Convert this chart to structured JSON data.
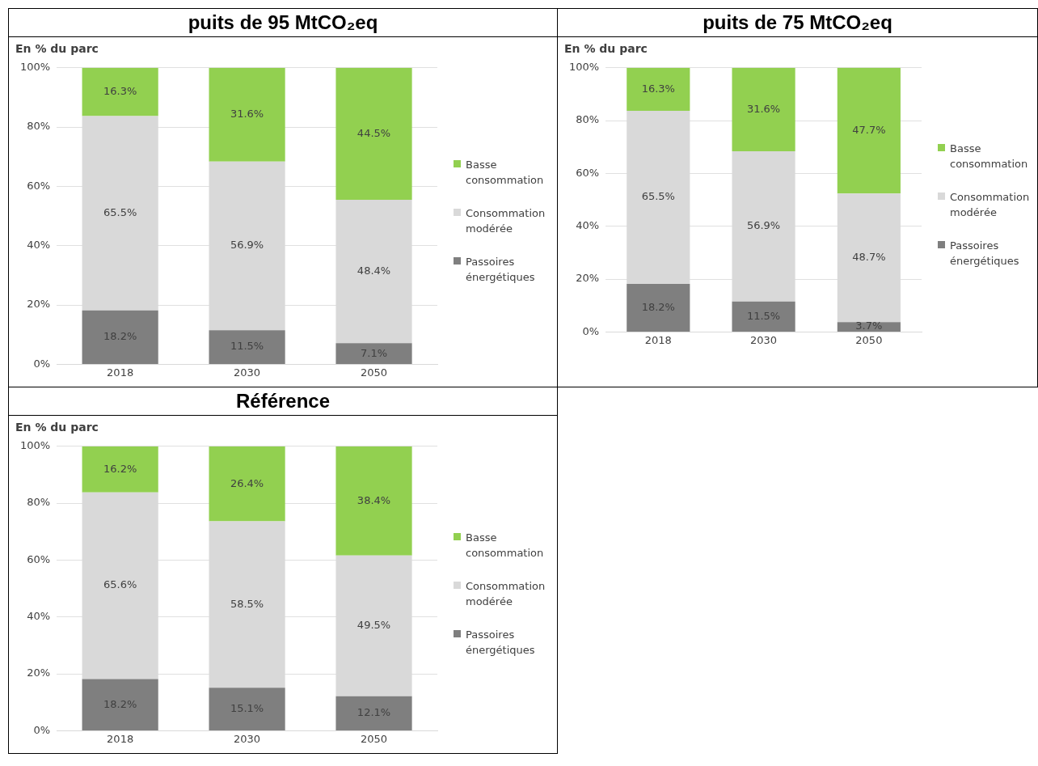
{
  "chart_data": [
    {
      "type": "bar",
      "title": "puits de 95 MtCO₂eq",
      "ylabel": "En % du parc",
      "categories": [
        "2018",
        "2030",
        "2050"
      ],
      "stacked": true,
      "ylim": [
        0,
        100
      ],
      "yticks": [
        {
          "value": 0,
          "label": "0%"
        },
        {
          "value": 20,
          "label": "20%"
        },
        {
          "value": 40,
          "label": "40%"
        },
        {
          "value": 60,
          "label": "60%"
        },
        {
          "value": 80,
          "label": "80%"
        },
        {
          "value": 100,
          "label": "100%"
        }
      ],
      "grid": "y",
      "legend": "right",
      "series": [
        {
          "name": "Passoires énergétiques",
          "color": "#7f7f7f",
          "values": [
            18.2,
            11.5,
            7.1
          ],
          "value_labels": [
            "18.2%",
            "11.5%",
            "7.1%"
          ]
        },
        {
          "name": "Consommation modérée",
          "color": "#d9d9d9",
          "values": [
            65.5,
            56.9,
            48.4
          ],
          "value_labels": [
            "65.5%",
            "56.9%",
            "48.4%"
          ]
        },
        {
          "name": "Basse consommation",
          "color": "#92d050",
          "values": [
            16.3,
            31.6,
            44.5
          ],
          "value_labels": [
            "16.3%",
            "31.6%",
            "44.5%"
          ]
        }
      ]
    },
    {
      "type": "bar",
      "title": "puits de 75 MtCO₂eq",
      "ylabel": "En % du parc",
      "categories": [
        "2018",
        "2030",
        "2050"
      ],
      "stacked": true,
      "ylim": [
        0,
        100
      ],
      "yticks": [
        {
          "value": 0,
          "label": "0%"
        },
        {
          "value": 20,
          "label": "20%"
        },
        {
          "value": 40,
          "label": "40%"
        },
        {
          "value": 60,
          "label": "60%"
        },
        {
          "value": 80,
          "label": "80%"
        },
        {
          "value": 100,
          "label": "100%"
        }
      ],
      "grid": "y",
      "legend": "right",
      "series": [
        {
          "name": "Passoires énergétiques",
          "color": "#7f7f7f",
          "values": [
            18.2,
            11.5,
            3.7
          ],
          "value_labels": [
            "18.2%",
            "11.5%",
            "3.7%"
          ]
        },
        {
          "name": "Consommation modérée",
          "color": "#d9d9d9",
          "values": [
            65.5,
            56.9,
            48.7
          ],
          "value_labels": [
            "65.5%",
            "56.9%",
            "48.7%"
          ]
        },
        {
          "name": "Basse consommation",
          "color": "#92d050",
          "values": [
            16.3,
            31.6,
            47.7
          ],
          "value_labels": [
            "16.3%",
            "31.6%",
            "47.7%"
          ]
        }
      ]
    },
    {
      "type": "bar",
      "title": "Référence",
      "ylabel": "En % du parc",
      "categories": [
        "2018",
        "2030",
        "2050"
      ],
      "stacked": true,
      "ylim": [
        0,
        100
      ],
      "yticks": [
        {
          "value": 0,
          "label": "0%"
        },
        {
          "value": 20,
          "label": "20%"
        },
        {
          "value": 40,
          "label": "40%"
        },
        {
          "value": 60,
          "label": "60%"
        },
        {
          "value": 80,
          "label": "80%"
        },
        {
          "value": 100,
          "label": "100%"
        }
      ],
      "grid": "y",
      "legend": "right",
      "series": [
        {
          "name": "Passoires énergétiques",
          "color": "#7f7f7f",
          "values": [
            18.2,
            15.1,
            12.1
          ],
          "value_labels": [
            "18.2%",
            "15.1%",
            "12.1%"
          ]
        },
        {
          "name": "Consommation modérée",
          "color": "#d9d9d9",
          "values": [
            65.6,
            58.5,
            49.5
          ],
          "value_labels": [
            "65.6%",
            "58.5%",
            "49.5%"
          ]
        },
        {
          "name": "Basse consommation",
          "color": "#92d050",
          "values": [
            16.2,
            26.4,
            38.4
          ],
          "value_labels": [
            "16.2%",
            "26.4%",
            "38.4%"
          ]
        }
      ]
    }
  ]
}
